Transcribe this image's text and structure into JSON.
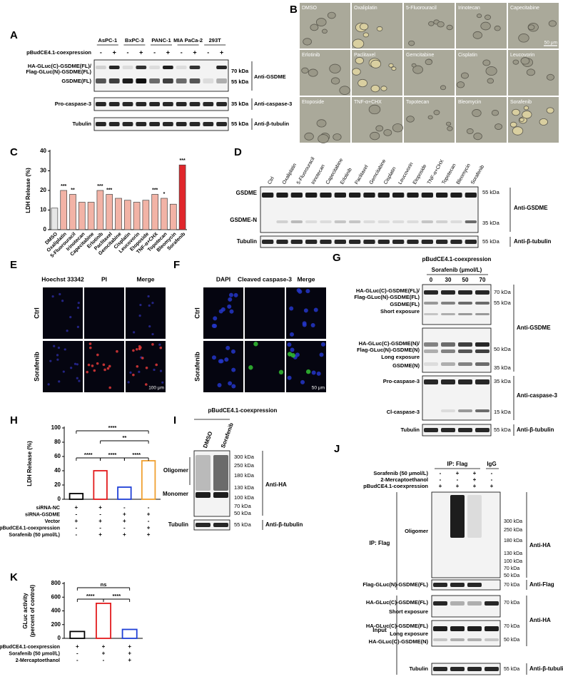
{
  "panel_letters": [
    "A",
    "B",
    "C",
    "D",
    "E",
    "F",
    "G",
    "H",
    "I",
    "J",
    "K"
  ],
  "panels": {
    "A": {
      "cell_lines": [
        "AsPC-1",
        "BxPC-3",
        "PANC-1",
        "MIA PaCa-2",
        "293T"
      ],
      "row_label": "pBudCE4.1-coexpression",
      "signs": [
        "-",
        "+",
        "-",
        "+",
        "-",
        "+",
        "-",
        "+",
        "-",
        "+"
      ],
      "band_labels": [
        "HA-GLuc(C)-GSDME(FL)/",
        "Flag-GLuc(N)-GSDME(FL)",
        "GSDME(FL)",
        "Pro-caspase-3",
        "Tubulin"
      ],
      "markers": [
        "70 kDa",
        "55 kDa",
        "35 kDa",
        "55 kDa"
      ],
      "antibodies": [
        "Anti-GSDME",
        "Anti-caspase-3",
        "Anti-β-tubulin"
      ]
    },
    "B": {
      "treatments": [
        "DMSO",
        "Oxaliplatin",
        "5-Fluorouracil",
        "Irinotecan",
        "Capecitabine",
        "Erlotinib",
        "Paclitaxel",
        "Gemcitabine",
        "Cisplatin",
        "Leucovorin",
        "Etoposide",
        "TNF-α+CHX",
        "Topotecan",
        "Bleomycin",
        "Sorafenib"
      ],
      "scale_bar": "50 μm"
    },
    "D": {
      "lanes": [
        "Ctrl",
        "Oxaliplatin",
        "5-Fluorouracil",
        "Irinotecan",
        "Capecitabine",
        "Erlotinib",
        "Paclitaxel",
        "Gemcitabine",
        "Cisplatin",
        "Leucovorin",
        "Etoposide",
        "TNF-α+CHX",
        "Topotecan",
        "Bleomycin",
        "Sorafenib"
      ],
      "band_labels": [
        "GSDME",
        "GSDME-N",
        "Tubulin"
      ],
      "markers": [
        "55 kDa",
        "35 kDa",
        "55 kDa"
      ],
      "antibodies": [
        "Anti-GSDME",
        "Anti-β-tubulin"
      ]
    },
    "E": {
      "channels": [
        "Hoechst 33342",
        "PI",
        "Merge"
      ],
      "groups": [
        "Ctrl",
        "Sorafenib"
      ],
      "scale_bar": "100 μm"
    },
    "F": {
      "channels": [
        "DAPI",
        "Cleaved caspase-3",
        "Merge"
      ],
      "groups": [
        "Ctrl",
        "Sorafenib"
      ],
      "scale_bar": "50 μm"
    },
    "G": {
      "title": "pBudCE4.1-coexpression",
      "treatment": "Sorafenib (μmol/L)",
      "doses": [
        0,
        30,
        50,
        70
      ],
      "band_labels": [
        "HA-GLuc(C)-GSDME(FL)/",
        "Flag-GLuc(N)-GSDME(FL)",
        "GSDME(FL)",
        "Short exposure",
        "HA-GLuc(C)-GSDME(N)/",
        "Flag-GLuc(N)-GSDME(N)",
        "Long exposure",
        "GSDME(N)",
        "Pro-caspase-3",
        "Cl-caspase-3",
        "Tubulin"
      ],
      "markers": [
        "70 kDa",
        "55 kDa",
        "50 kDa",
        "35 kDa",
        "35 kDa",
        "15 kDa",
        "55 kDa"
      ],
      "antibodies": [
        "Anti-GSDME",
        "Anti-caspase-3",
        "Anti-β-tubulin"
      ]
    },
    "I": {
      "title": "pBudCE4.1-coexpression",
      "lanes": [
        "DMSO",
        "Sorafenib"
      ],
      "band_labels": [
        "Oligomer",
        "Monomer",
        "Tubulin"
      ],
      "markers": [
        "300 kDa",
        "250 kDa",
        "180 kDa",
        "130 kDa",
        "100 kDa",
        "70 kDa",
        "50 kDa",
        "55 kDa"
      ],
      "antibodies": [
        "Anti-HA",
        "Anti-β-tubulin"
      ]
    },
    "J": {
      "groups": [
        "IP: Flag",
        "IgG"
      ],
      "conditions": [
        {
          "name": "Sorafenib (50 μmol/L)",
          "signs": [
            "-",
            "+",
            "+",
            "-"
          ]
        },
        {
          "name": "2-Mercaptoethanol",
          "signs": [
            "-",
            "-",
            "+",
            "-"
          ]
        },
        {
          "name": "pBudCE4.1-coexpression",
          "signs": [
            "+",
            "+",
            "+",
            "+"
          ]
        }
      ],
      "sections": [
        "IP: Flag",
        "Input"
      ],
      "band_labels": [
        "Oligomer",
        "Flag-GLuc(N)-GSDME(FL)",
        "HA-GLuc(C)-GSDME(FL)",
        "Short exposure",
        "HA-GLuc(C)-GSDME(FL)",
        "Long exposure",
        "HA-GLuc(C)-GSDME(N)",
        "Tubulin"
      ],
      "markers": [
        "300 kDa",
        "250 kDa",
        "180 kDa",
        "130 kDa",
        "100 kDa",
        "70 kDa",
        "50 kDa",
        "70 kDa",
        "70 kDa",
        "70 kDa",
        "50 kDa",
        "55 kDa"
      ],
      "antibodies": [
        "Anti-HA",
        "Anti-Flag",
        "Anti-HA",
        "Anti-β-tubulin"
      ]
    }
  },
  "chart_data": [
    {
      "type": "bar",
      "y_label": "LDH Release (%)",
      "categories": [
        "DMSO",
        "Oxaliplatin",
        "5-Fluorouracil",
        "Irinotecan",
        "Capecitabine",
        "Erlotinib",
        "Paclitaxel",
        "Gemcitabine",
        "Cisplatin",
        "Leucovorin",
        "Etoposide",
        "TNF-α+CHX",
        "Topotecan",
        "Bleomycin",
        "Sorafenib"
      ],
      "values": [
        11,
        20,
        18,
        14,
        14,
        20,
        18,
        16,
        15,
        14,
        15,
        18,
        16,
        13,
        33
      ],
      "colors": [
        "#e6e6e6",
        "#f2b3a6",
        "#f2b3a6",
        "#f2b3a6",
        "#f2b3a6",
        "#f2b3a6",
        "#f2b3a6",
        "#f2b3a6",
        "#f2b3a6",
        "#f2b3a6",
        "#f2b3a6",
        "#f2b3a6",
        "#f2b3a6",
        "#f2b3a6",
        "#e0262b"
      ],
      "annotations": [
        null,
        "***",
        "**",
        null,
        null,
        "***",
        "***",
        null,
        null,
        null,
        null,
        "***",
        "*",
        null,
        "***"
      ],
      "ylim": [
        0,
        40
      ],
      "yticks": [
        0,
        10,
        20,
        30,
        40
      ]
    },
    {
      "type": "bar",
      "y_label": "LDH Release (%)",
      "values": [
        8,
        40,
        17,
        54
      ],
      "colors": [
        "#000000",
        "#e31a1c",
        "#1f3fd6",
        "#f0a030"
      ],
      "ylim": [
        0,
        100
      ],
      "yticks": [
        0,
        20,
        40,
        60,
        80,
        100
      ],
      "significance": [
        "****",
        "**",
        "****",
        "****",
        "****"
      ],
      "conditions": [
        {
          "name": "siRNA-NC",
          "signs": [
            "+",
            "+",
            "-",
            "-"
          ]
        },
        {
          "name": "siRNA-GSDME",
          "signs": [
            "-",
            "-",
            "+",
            "+"
          ]
        },
        {
          "name": "Vector",
          "signs": [
            "+",
            "+",
            "+",
            "-"
          ]
        },
        {
          "name": "pBudCE4.1-coexpression",
          "signs": [
            "-",
            "-",
            "-",
            "+"
          ]
        },
        {
          "name": "Sorafenib (50 μmol/L)",
          "signs": [
            "-",
            "+",
            "+",
            "+"
          ]
        }
      ]
    },
    {
      "type": "bar",
      "y_label": [
        "GLuc activity",
        "(percent of control)"
      ],
      "values": [
        100,
        510,
        130
      ],
      "colors": [
        "#000000",
        "#e31a1c",
        "#1f3fd6"
      ],
      "ylim": [
        0,
        800
      ],
      "yticks": [
        0,
        200,
        400,
        600,
        800
      ],
      "significance": [
        "ns",
        "****",
        "****"
      ],
      "conditions": [
        {
          "name": "pBudCE4.1-coexpression",
          "signs": [
            "+",
            "+",
            "+"
          ]
        },
        {
          "name": "Sorafenib (50 μmol/L)",
          "signs": [
            "-",
            "+",
            "+"
          ]
        },
        {
          "name": "2-Mercaptoethanol",
          "signs": [
            "-",
            "-",
            "+"
          ]
        }
      ]
    }
  ]
}
